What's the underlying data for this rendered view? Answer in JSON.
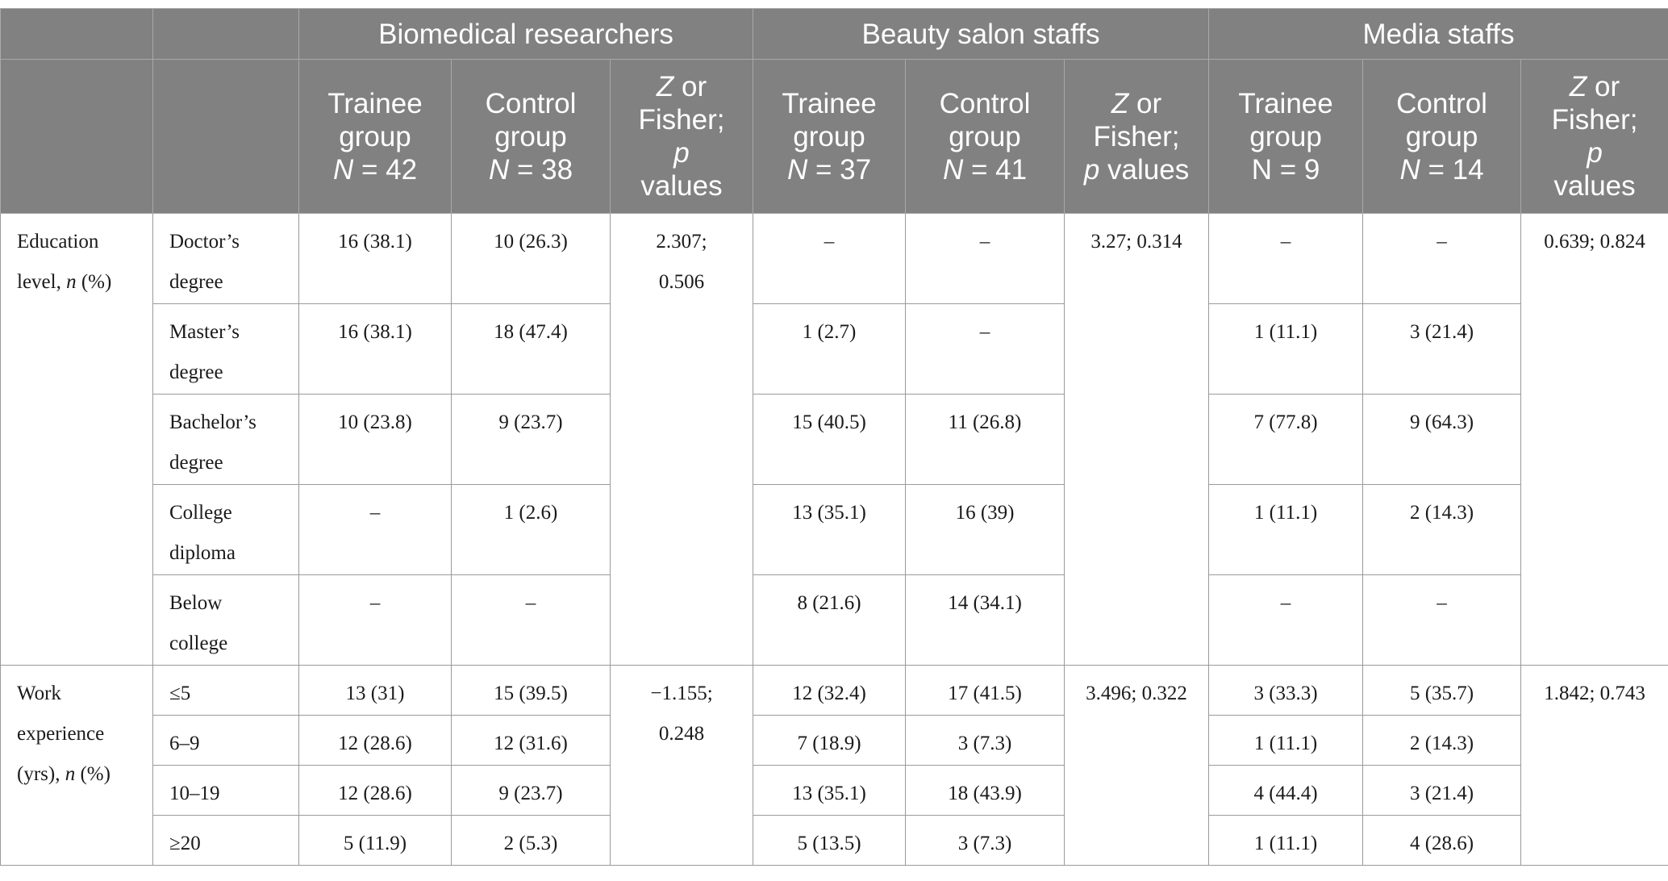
{
  "header": {
    "groups": [
      "Biomedical researchers",
      "Beauty salon staffs",
      "Media staffs"
    ],
    "columns": [
      {
        "line1": "Trainee",
        "line2": "group",
        "n_label": "N",
        "n_rest": " = 42"
      },
      {
        "line1": "Control",
        "line2": "group",
        "n_label": "N",
        "n_rest": " = 38"
      },
      {
        "line1": "Z",
        "line1_rest": " or",
        "line2": "Fisher;",
        "line3": "p",
        "line4": "values"
      },
      {
        "line1": "Trainee",
        "line2": "group",
        "n_label": "N",
        "n_rest": " = 37"
      },
      {
        "line1": "Control",
        "line2": "group",
        "n_label": "N",
        "n_rest": " = 41"
      },
      {
        "line1": "Z",
        "line1_rest": " or",
        "line2": "Fisher;",
        "line3": "p",
        "line3_rest": " values"
      },
      {
        "line1": "Trainee",
        "line2": "group",
        "n_text": "N = 9"
      },
      {
        "line1": "Control",
        "line2": "group",
        "n_label": "N",
        "n_rest": " = 14"
      },
      {
        "line1": "Z",
        "line1_rest": " or",
        "line2": "Fisher;",
        "line3": "p",
        "line4": "values"
      }
    ]
  },
  "education": {
    "label_a": "Education",
    "label_b": "level, ",
    "label_n": "n",
    "label_c": " (%)",
    "rows": [
      {
        "sub1": "Doctor’s",
        "sub2": "degree",
        "v": [
          "16 (38.1)",
          "10 (26.3)",
          "–",
          "–",
          "–",
          "–"
        ]
      },
      {
        "sub1": "Master’s",
        "sub2": "degree",
        "v": [
          "16 (38.1)",
          "18 (47.4)",
          "1 (2.7)",
          "–",
          "1 (11.1)",
          "3 (21.4)"
        ]
      },
      {
        "sub1": "Bachelor’s",
        "sub2": "degree",
        "v": [
          "10 (23.8)",
          "9 (23.7)",
          "15 (40.5)",
          "11 (26.8)",
          "7 (77.8)",
          "9 (64.3)"
        ]
      },
      {
        "sub1": "College",
        "sub2": "diploma",
        "v": [
          "–",
          "1 (2.6)",
          "13 (35.1)",
          "16 (39)",
          "1 (11.1)",
          "2 (14.3)"
        ]
      },
      {
        "sub1": "Below",
        "sub2": "college",
        "v": [
          "–",
          "–",
          "8 (21.6)",
          "14 (34.1)",
          "–",
          "–"
        ]
      }
    ],
    "stat_bio_1": "2.307;",
    "stat_bio_2": "0.506",
    "stat_beauty": "3.27; 0.314",
    "stat_media": "0.639; 0.824"
  },
  "work": {
    "label_a": "Work",
    "label_b": "experience",
    "label_c": "(yrs), ",
    "label_n": "n",
    "label_d": " (%)",
    "rows": [
      {
        "sub": "≤5",
        "v": [
          "13 (31)",
          "15 (39.5)",
          "12 (32.4)",
          "17 (41.5)",
          "3 (33.3)",
          "5 (35.7)"
        ]
      },
      {
        "sub": "6–9",
        "v": [
          "12 (28.6)",
          "12 (31.6)",
          "7 (18.9)",
          "3 (7.3)",
          "1 (11.1)",
          "2 (14.3)"
        ]
      },
      {
        "sub": "10–19",
        "v": [
          "12 (28.6)",
          "9 (23.7)",
          "13 (35.1)",
          "18 (43.9)",
          "4 (44.4)",
          "3 (21.4)"
        ]
      },
      {
        "sub": "≥20",
        "v": [
          "5 (11.9)",
          "2 (5.3)",
          "5 (13.5)",
          "3 (7.3)",
          "1 (11.1)",
          "4 (28.6)"
        ]
      }
    ],
    "stat_bio_1": "−1.155;",
    "stat_bio_2": "0.248",
    "stat_beauty": "3.496; 0.322",
    "stat_media": "1.842; 0.743"
  }
}
